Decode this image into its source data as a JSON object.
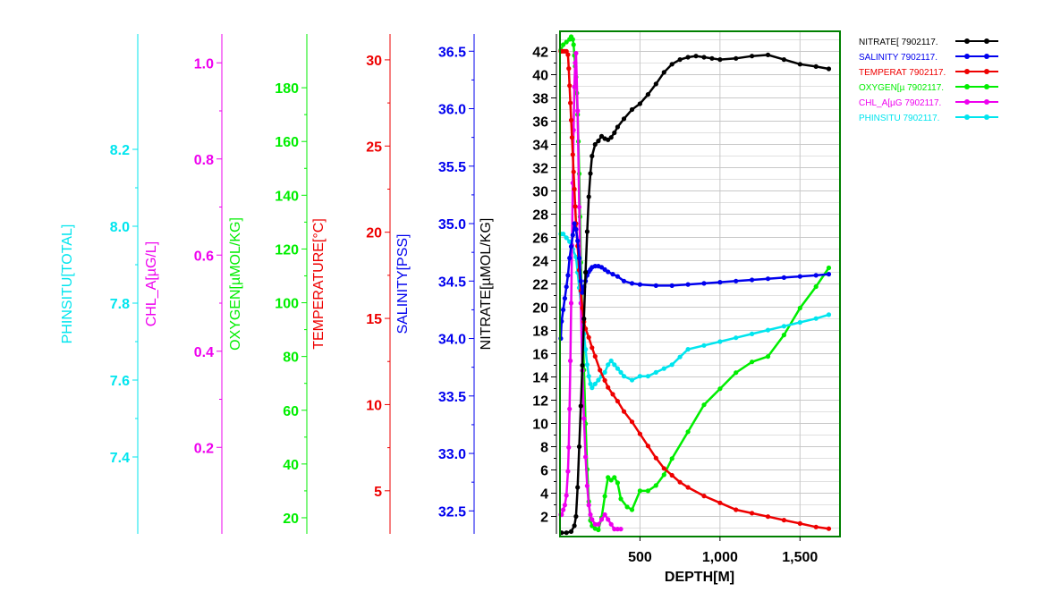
{
  "chart_data": {
    "type": "line",
    "xlabel": "DEPTH[M]",
    "xlim": [
      0,
      1750
    ],
    "x_ticks": [
      500,
      1000,
      1500
    ],
    "x_tick_labels": [
      "500",
      "1,000",
      "1,500"
    ],
    "grid": true,
    "legend_position": "top-right",
    "axes": [
      {
        "id": "phinsitu",
        "label": "PHINSITU[TOTAL]",
        "color": "#00e5ee",
        "range": [
          7.2,
          8.5
        ],
        "ticks": [
          7.4,
          7.6,
          7.8,
          8.0,
          8.2
        ],
        "tick_labels": [
          "7.4",
          "7.6",
          "7.8",
          "8.0",
          "8.2"
        ]
      },
      {
        "id": "chl_a",
        "label": "CHL_A[µG/L]",
        "color": "#ee00ee",
        "range": [
          0.02,
          1.06
        ],
        "ticks": [
          0.2,
          0.4,
          0.6,
          0.8,
          1.0
        ],
        "tick_labels": [
          "0.2",
          "0.4",
          "0.6",
          "0.8",
          "1.0"
        ]
      },
      {
        "id": "oxygen",
        "label": "OXYGEN[µMOL/KG]",
        "color": "#00ee00",
        "range": [
          14,
          200
        ],
        "ticks": [
          20,
          40,
          60,
          80,
          100,
          120,
          140,
          160,
          180
        ],
        "tick_labels": [
          "20",
          "40",
          "60",
          "80",
          "100",
          "120",
          "140",
          "160",
          "180"
        ]
      },
      {
        "id": "temperature",
        "label": "TEMPERATURE[°C]",
        "color": "#ee0000",
        "range": [
          2.5,
          31.5
        ],
        "ticks": [
          5,
          10,
          15,
          20,
          25,
          30
        ],
        "tick_labels": [
          "5",
          "10",
          "15",
          "20",
          "25",
          "30"
        ]
      },
      {
        "id": "salinity",
        "label": "SALINITY[PSS]",
        "color": "#0000ee",
        "range": [
          32.3,
          36.65
        ],
        "ticks": [
          32.5,
          33.0,
          33.5,
          34.0,
          34.5,
          35.0,
          35.5,
          36.0,
          36.5
        ],
        "tick_labels": [
          "32.5",
          "33.0",
          "33.5",
          "34.0",
          "34.5",
          "35.0",
          "35.5",
          "36.0",
          "36.5"
        ]
      },
      {
        "id": "nitrate",
        "label": "NITRATE[µMOL/KG]",
        "color": "#000000",
        "range": [
          0.5,
          43.5
        ],
        "ticks": [
          2,
          4,
          6,
          8,
          10,
          12,
          14,
          16,
          18,
          20,
          22,
          24,
          26,
          28,
          30,
          32,
          34,
          36,
          38,
          40,
          42
        ],
        "tick_labels": [
          "2",
          "4",
          "6",
          "8",
          "10",
          "12",
          "14",
          "16",
          "18",
          "20",
          "22",
          "24",
          "26",
          "28",
          "30",
          "32",
          "34",
          "36",
          "38",
          "40",
          "42"
        ]
      }
    ],
    "series": [
      {
        "name": "NITRATE[ 7902117.",
        "axis": "nitrate",
        "color": "#000000",
        "x": [
          10,
          40,
          70,
          90,
          100,
          110,
          120,
          130,
          140,
          150,
          160,
          170,
          180,
          190,
          200,
          220,
          240,
          260,
          280,
          300,
          320,
          340,
          360,
          400,
          450,
          500,
          550,
          600,
          650,
          700,
          750,
          800,
          850,
          900,
          950,
          1000,
          1100,
          1200,
          1300,
          1400,
          1500,
          1600,
          1680
        ],
        "y": [
          0.6,
          0.6,
          0.7,
          1.2,
          2,
          4.5,
          8,
          11.5,
          15,
          19,
          23,
          26.5,
          29.5,
          31.5,
          33,
          34,
          34.3,
          34.7,
          34.5,
          34.4,
          34.6,
          35,
          35.5,
          36.2,
          37,
          37.5,
          38.3,
          39.2,
          40.2,
          40.9,
          41.3,
          41.5,
          41.6,
          41.5,
          41.4,
          41.3,
          41.4,
          41.6,
          41.7,
          41.3,
          40.9,
          40.7,
          40.5
        ]
      },
      {
        "name": "SALINITY 7902117.",
        "axis": "salinity",
        "color": "#0000ee",
        "x": [
          5,
          10,
          20,
          30,
          40,
          50,
          60,
          70,
          80,
          90,
          100,
          110,
          120,
          130,
          140,
          150,
          160,
          170,
          180,
          190,
          200,
          220,
          240,
          260,
          280,
          300,
          330,
          360,
          400,
          450,
          500,
          600,
          700,
          800,
          900,
          1000,
          1100,
          1200,
          1300,
          1400,
          1500,
          1600,
          1680
        ],
        "y": [
          34.0,
          34.15,
          34.25,
          34.35,
          34.45,
          34.55,
          34.7,
          34.8,
          34.9,
          35.0,
          34.95,
          34.85,
          34.7,
          34.5,
          34.4,
          34.45,
          34.5,
          34.55,
          34.58,
          34.6,
          34.62,
          34.63,
          34.63,
          34.62,
          34.6,
          34.58,
          34.56,
          34.54,
          34.5,
          34.48,
          34.47,
          34.46,
          34.46,
          34.47,
          34.48,
          34.49,
          34.5,
          34.51,
          34.52,
          34.53,
          34.54,
          34.55,
          34.56
        ]
      },
      {
        "name": "TEMPERAT 7902117.",
        "axis": "temperature",
        "color": "#ee0000",
        "x": [
          5,
          10,
          20,
          30,
          40,
          50,
          55,
          60,
          65,
          70,
          75,
          80,
          85,
          90,
          95,
          100,
          110,
          120,
          130,
          140,
          150,
          160,
          180,
          200,
          220,
          250,
          280,
          300,
          330,
          360,
          400,
          450,
          500,
          550,
          600,
          650,
          700,
          750,
          800,
          900,
          1000,
          1100,
          1200,
          1300,
          1400,
          1500,
          1600,
          1680
        ],
        "y": [
          30.5,
          30.5,
          30.5,
          30.5,
          30.5,
          30.3,
          29.5,
          28.5,
          27.5,
          26.5,
          25.5,
          24.5,
          23.5,
          22.5,
          21.5,
          20.5,
          19.2,
          17.8,
          16.6,
          15.6,
          14.8,
          14.4,
          13.9,
          13.3,
          12.8,
          12.0,
          11.4,
          11.0,
          10.6,
          10.2,
          9.6,
          9.0,
          8.3,
          7.6,
          6.9,
          6.3,
          5.9,
          5.5,
          5.2,
          4.7,
          4.3,
          3.9,
          3.7,
          3.5,
          3.3,
          3.1,
          2.9,
          2.8
        ]
      },
      {
        "name": "OXYGEN[µ 7902117.",
        "axis": "oxygen",
        "color": "#00ee00",
        "x": [
          5,
          20,
          40,
          60,
          70,
          80,
          85,
          90,
          95,
          100,
          105,
          110,
          115,
          120,
          125,
          130,
          140,
          150,
          160,
          170,
          180,
          190,
          200,
          220,
          240,
          260,
          280,
          300,
          320,
          340,
          360,
          380,
          420,
          450,
          500,
          550,
          600,
          650,
          700,
          800,
          900,
          1000,
          1100,
          1200,
          1300,
          1400,
          1500,
          1600,
          1680
        ],
        "y": [
          194,
          196,
          197,
          198,
          199,
          198,
          196,
          192,
          188,
          184,
          178,
          170,
          160,
          148,
          132,
          115,
          95,
          75,
          55,
          38,
          26,
          19,
          17,
          16,
          15.5,
          20,
          28,
          35,
          34,
          35,
          33,
          27,
          24,
          23,
          30,
          30,
          32,
          36,
          42,
          52,
          62,
          68,
          74,
          78,
          80,
          88,
          98,
          106,
          113
        ]
      },
      {
        "name": "CHL_A[µG 7902117.",
        "axis": "chl_a",
        "color": "#ee00ee",
        "x": [
          5,
          10,
          20,
          30,
          40,
          50,
          55,
          60,
          65,
          70,
          75,
          80,
          85,
          90,
          95,
          100,
          110,
          120,
          130,
          140,
          150,
          160,
          170,
          180,
          190,
          200,
          220,
          240,
          260,
          280,
          300,
          320,
          340,
          360,
          380
        ],
        "y": [
          0.06,
          0.06,
          0.07,
          0.08,
          0.1,
          0.15,
          0.2,
          0.28,
          0.38,
          0.5,
          0.62,
          0.75,
          0.86,
          0.95,
          1.0,
          1.02,
          0.9,
          0.7,
          0.5,
          0.36,
          0.26,
          0.18,
          0.12,
          0.08,
          0.06,
          0.05,
          0.04,
          0.04,
          0.05,
          0.06,
          0.05,
          0.04,
          0.03,
          0.03,
          0.03
        ]
      },
      {
        "name": "PHINSITU 7902117.",
        "axis": "phinsitu",
        "color": "#00e5ee",
        "x": [
          5,
          20,
          40,
          60,
          80,
          100,
          110,
          120,
          130,
          140,
          150,
          160,
          170,
          180,
          190,
          200,
          220,
          240,
          260,
          280,
          300,
          320,
          340,
          360,
          380,
          400,
          450,
          500,
          550,
          600,
          650,
          700,
          750,
          800,
          900,
          1000,
          1100,
          1200,
          1300,
          1400,
          1500,
          1600,
          1680
        ],
        "y": [
          7.98,
          7.98,
          7.97,
          7.96,
          7.94,
          7.92,
          7.88,
          7.84,
          7.8,
          7.76,
          7.72,
          7.68,
          7.64,
          7.61,
          7.59,
          7.58,
          7.59,
          7.6,
          7.61,
          7.62,
          7.64,
          7.65,
          7.64,
          7.63,
          7.62,
          7.61,
          7.6,
          7.61,
          7.61,
          7.62,
          7.63,
          7.64,
          7.66,
          7.68,
          7.69,
          7.7,
          7.71,
          7.72,
          7.73,
          7.74,
          7.75,
          7.76,
          7.77
        ]
      }
    ]
  }
}
